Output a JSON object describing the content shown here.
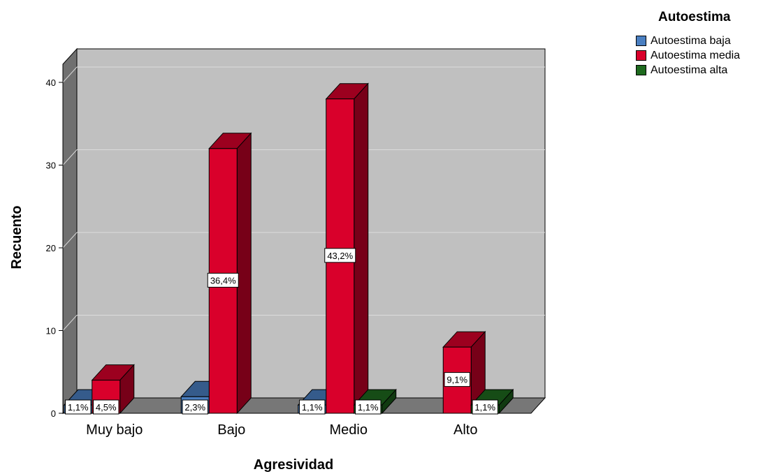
{
  "chart_data": {
    "type": "bar",
    "xlabel": "Agresividad",
    "ylabel": "Recuento",
    "ylim": [
      0,
      40
    ],
    "yticks": [
      0,
      10,
      20,
      30,
      40
    ],
    "grid": true,
    "legend_position": "top-right",
    "legend_title": "Autoestima",
    "categories": [
      "Muy bajo",
      "Bajo",
      "Medio",
      "Alto"
    ],
    "series": [
      {
        "name": "Autoestima baja",
        "color": "#4a7fc1",
        "values": [
          1,
          2,
          1,
          0
        ],
        "labels": [
          "1,1%",
          "2,3%",
          "1,1%",
          ""
        ]
      },
      {
        "name": "Autoestima media",
        "color": "#d9002b",
        "values": [
          4,
          32,
          38,
          8
        ],
        "labels": [
          "4,5%",
          "36,4%",
          "43,2%",
          "9,1%"
        ]
      },
      {
        "name": "Autoestima alta",
        "color": "#1e6a1e",
        "values": [
          0,
          0,
          1,
          1
        ],
        "labels": [
          "",
          "",
          "1,1%",
          "1,1%"
        ]
      }
    ]
  }
}
